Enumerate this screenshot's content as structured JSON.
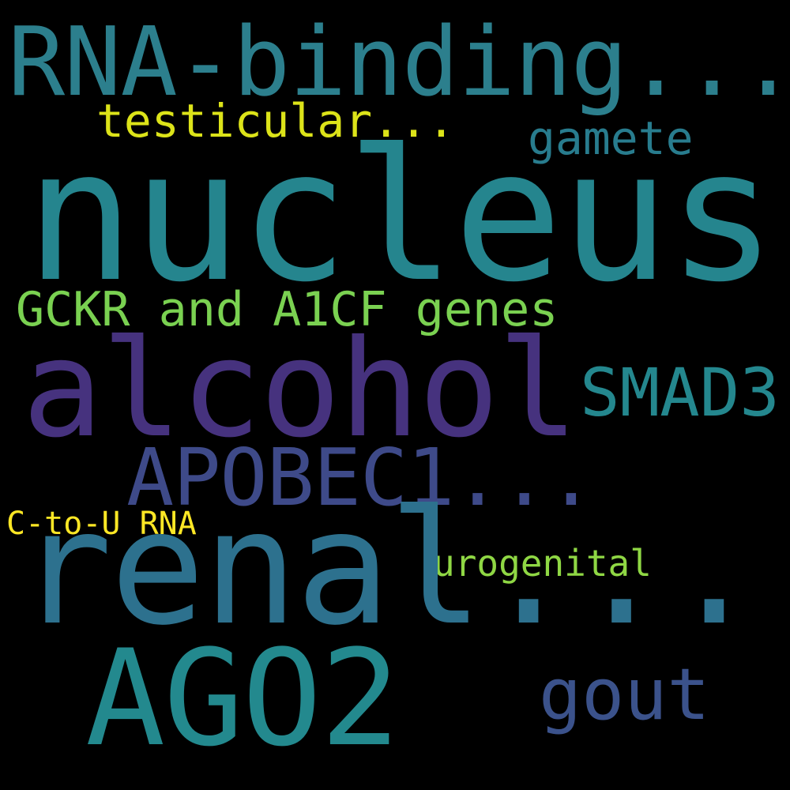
{
  "words": {
    "rna_binding": {
      "text": "RNA-binding...",
      "color": "#2c7f8d"
    },
    "testicular": {
      "text": "testicular...",
      "color": "#dce319"
    },
    "gamete": {
      "text": "gamete",
      "color": "#287c8e"
    },
    "nucleus": {
      "text": "nucleus",
      "color": "#25858e"
    },
    "gckr": {
      "text": "GCKR and A1CF genes",
      "color": "#7ad151"
    },
    "alcohol": {
      "text": "alcohol",
      "color": "#46327e"
    },
    "smad3": {
      "text": "SMAD3",
      "color": "#24878e"
    },
    "apobec1": {
      "text": "APOBEC1...",
      "color": "#3e4a89"
    },
    "c_to_u": {
      "text": "C-to-U RNA",
      "color": "#fde725"
    },
    "urogenital": {
      "text": "urogenital",
      "color": "#8fd744"
    },
    "renal": {
      "text": "renal...",
      "color": "#2d718e"
    },
    "ago2": {
      "text": "AGO2",
      "color": "#23898e"
    },
    "gout": {
      "text": "gout",
      "color": "#3b528b"
    }
  }
}
